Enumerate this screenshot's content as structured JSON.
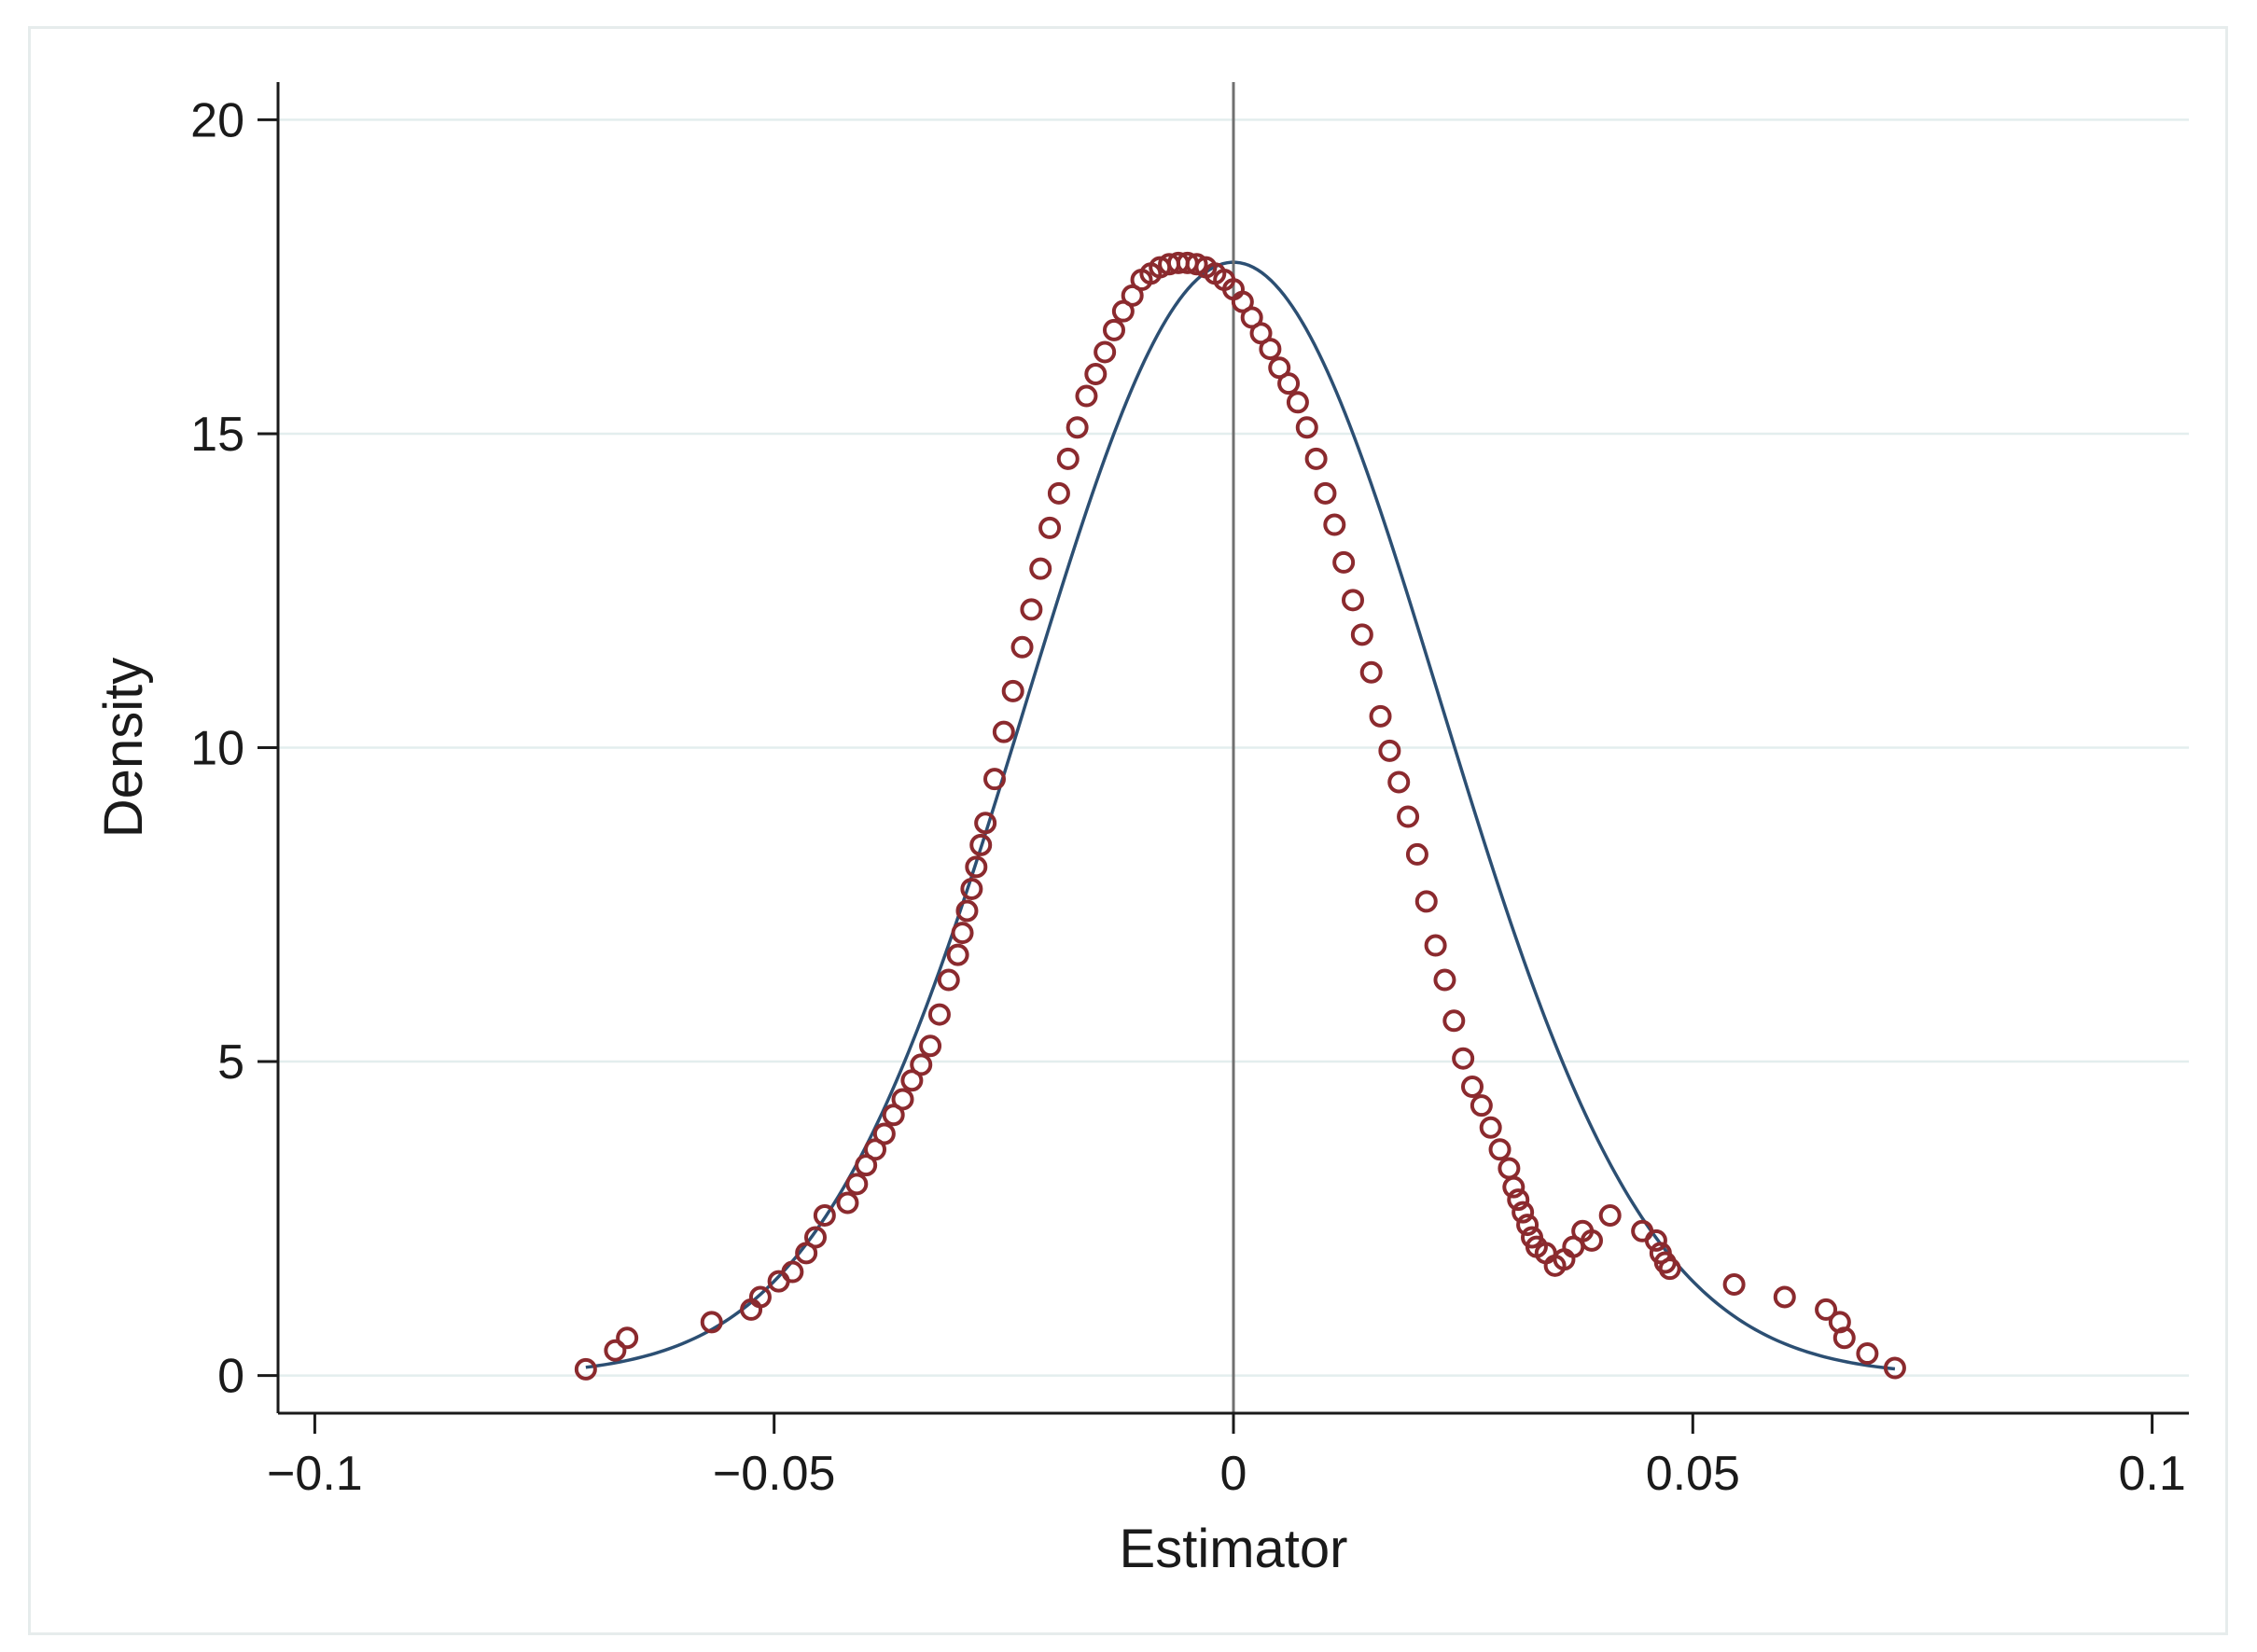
{
  "chart_data": {
    "type": "scatter",
    "title": "",
    "xlabel": "Estimator",
    "ylabel": "Density",
    "xlim": [
      -0.104,
      0.104
    ],
    "ylim": [
      -0.6,
      20.6
    ],
    "x_ticks": [
      -0.1,
      -0.05,
      0,
      0.05,
      0.1
    ],
    "x_tick_labels": [
      "−0.1",
      "−0.05",
      "0",
      "0.05",
      "0.1"
    ],
    "y_ticks": [
      0,
      5,
      10,
      15,
      20
    ],
    "y_tick_labels": [
      "0",
      "5",
      "10",
      "15",
      "20"
    ],
    "grid": "horizontal",
    "legend": "none",
    "reference_line_x": 0,
    "colors": {
      "points": "#8b2a2e",
      "fitted_curve": "#2c4f73",
      "reference_line": "#707070",
      "grid": "#e3eeee",
      "axes": "#1a1a1a"
    },
    "series": [
      {
        "type": "scatter",
        "x": [
          -0.0705,
          -0.0673,
          -0.066,
          -0.0568,
          -0.0525,
          -0.0515,
          -0.0495,
          -0.048,
          -0.0465,
          -0.0455,
          -0.0445,
          -0.042,
          -0.041,
          -0.04,
          -0.039,
          -0.038,
          -0.037,
          -0.036,
          -0.035,
          -0.034,
          -0.033,
          -0.032,
          -0.031,
          -0.03,
          -0.0295,
          -0.029,
          -0.0285,
          -0.028,
          -0.0275,
          -0.027,
          -0.026,
          -0.025,
          -0.024,
          -0.023,
          -0.022,
          -0.021,
          -0.02,
          -0.019,
          -0.018,
          -0.017,
          -0.016,
          -0.015,
          -0.014,
          -0.013,
          -0.012,
          -0.011,
          -0.01,
          -0.009,
          -0.008,
          -0.007,
          -0.006,
          -0.005,
          -0.004,
          -0.003,
          -0.002,
          -0.001,
          0.0,
          0.001,
          0.002,
          0.003,
          0.004,
          0.005,
          0.006,
          0.007,
          0.008,
          0.009,
          0.01,
          0.011,
          0.012,
          0.013,
          0.014,
          0.015,
          0.016,
          0.017,
          0.018,
          0.019,
          0.02,
          0.021,
          0.022,
          0.023,
          0.024,
          0.025,
          0.026,
          0.027,
          0.028,
          0.029,
          0.03,
          0.0305,
          0.031,
          0.0315,
          0.032,
          0.0325,
          0.033,
          0.034,
          0.035,
          0.036,
          0.037,
          0.038,
          0.039,
          0.041,
          0.0445,
          0.046,
          0.0465,
          0.047,
          0.0475,
          0.0545,
          0.06,
          0.0645,
          0.066,
          0.0665,
          0.069,
          0.072
        ],
        "y": [
          0.1,
          0.4,
          0.6,
          0.85,
          1.05,
          1.25,
          1.5,
          1.65,
          1.95,
          2.2,
          2.55,
          2.75,
          3.05,
          3.35,
          3.6,
          3.85,
          4.15,
          4.4,
          4.7,
          4.95,
          5.25,
          5.75,
          6.3,
          6.7,
          7.05,
          7.4,
          7.75,
          8.1,
          8.45,
          8.8,
          9.5,
          10.25,
          10.9,
          11.6,
          12.2,
          12.85,
          13.5,
          14.05,
          14.6,
          15.1,
          15.6,
          15.95,
          16.3,
          16.65,
          16.95,
          17.2,
          17.45,
          17.55,
          17.65,
          17.7,
          17.72,
          17.72,
          17.7,
          17.65,
          17.55,
          17.45,
          17.3,
          17.1,
          16.85,
          16.6,
          16.35,
          16.05,
          15.8,
          15.5,
          15.1,
          14.6,
          14.05,
          13.55,
          12.95,
          12.35,
          11.8,
          11.2,
          10.5,
          9.95,
          9.45,
          8.9,
          8.3,
          7.55,
          6.85,
          6.3,
          5.65,
          5.05,
          4.6,
          4.3,
          3.95,
          3.6,
          3.3,
          3.0,
          2.8,
          2.6,
          2.4,
          2.2,
          2.05,
          1.95,
          1.75,
          1.85,
          2.05,
          2.3,
          2.15,
          2.55,
          2.3,
          2.15,
          1.95,
          1.8,
          1.7,
          1.45,
          1.25,
          1.05,
          0.85,
          0.6,
          0.35,
          0.12
        ]
      },
      {
        "type": "line",
        "kind": "normal density",
        "mean": 0.0,
        "sd": 0.0225
      }
    ]
  }
}
